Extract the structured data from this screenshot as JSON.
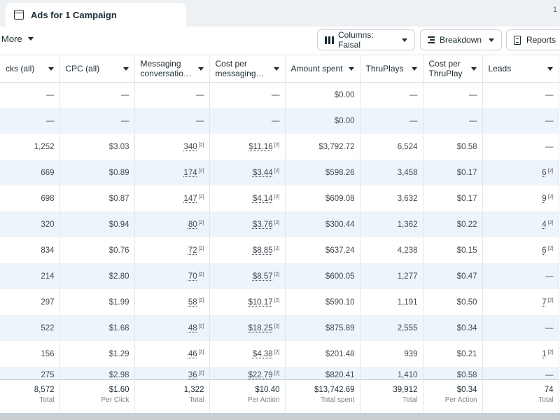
{
  "tab": {
    "title": "Ads for 1 Campaign",
    "corner": "1"
  },
  "toolbar": {
    "more_label": "More",
    "columns_label": "Columns: Faisal",
    "breakdown_label": "Breakdown",
    "reports_label": "Reports"
  },
  "table": {
    "columns": [
      "cks (all)",
      "CPC (all)",
      "Messaging conversatio…",
      "Cost per messaging…",
      "Amount spent",
      "ThruPlays",
      "Cost per ThruPlay",
      "Leads"
    ],
    "rows": [
      {
        "cells": [
          "—",
          "—",
          "—",
          "—",
          "$0.00",
          "—",
          "—",
          "—"
        ]
      },
      {
        "cells": [
          "—",
          "—",
          "—",
          "—",
          "$0.00",
          "—",
          "—",
          "—"
        ]
      },
      {
        "cells": [
          "1,252",
          "$3.03",
          "340",
          "$11.16",
          "$3,792.72",
          "6,524",
          "$0.58",
          "—"
        ]
      },
      {
        "cells": [
          "669",
          "$0.89",
          "174",
          "$3.44",
          "$598.26",
          "3,458",
          "$0.17",
          "6"
        ]
      },
      {
        "cells": [
          "698",
          "$0.87",
          "147",
          "$4.14",
          "$609.08",
          "3,632",
          "$0.17",
          "9"
        ]
      },
      {
        "cells": [
          "320",
          "$0.94",
          "80",
          "$3.76",
          "$300.44",
          "1,362",
          "$0.22",
          "4"
        ]
      },
      {
        "cells": [
          "834",
          "$0.76",
          "72",
          "$8.85",
          "$637.24",
          "4,238",
          "$0.15",
          "6"
        ]
      },
      {
        "cells": [
          "214",
          "$2.80",
          "70",
          "$8.57",
          "$600.05",
          "1,277",
          "$0.47",
          "—"
        ]
      },
      {
        "cells": [
          "297",
          "$1.99",
          "58",
          "$10.17",
          "$590.10",
          "1,191",
          "$0.50",
          "7"
        ]
      },
      {
        "cells": [
          "522",
          "$1.68",
          "48",
          "$18.25",
          "$875.89",
          "2,555",
          "$0.34",
          "—"
        ]
      },
      {
        "cells": [
          "156",
          "$1.29",
          "46",
          "$4.38",
          "$201.48",
          "939",
          "$0.21",
          "1"
        ]
      },
      {
        "cells": [
          "275",
          "$2.98",
          "36",
          "$22.79",
          "$820.41",
          "1,410",
          "$0.58",
          "—"
        ]
      }
    ],
    "footnote_mark": "[2]",
    "totals": [
      {
        "value": "8,572",
        "label": "Total"
      },
      {
        "value": "$1.60",
        "label": "Per Click"
      },
      {
        "value": "1,322",
        "label": "Total"
      },
      {
        "value": "$10.40",
        "label": "Per Action"
      },
      {
        "value": "$13,742.69",
        "label": "Total spent"
      },
      {
        "value": "39,912",
        "label": "Total"
      },
      {
        "value": "$0.34",
        "label": "Per Action"
      },
      {
        "value": "74",
        "label": "Total"
      }
    ]
  }
}
